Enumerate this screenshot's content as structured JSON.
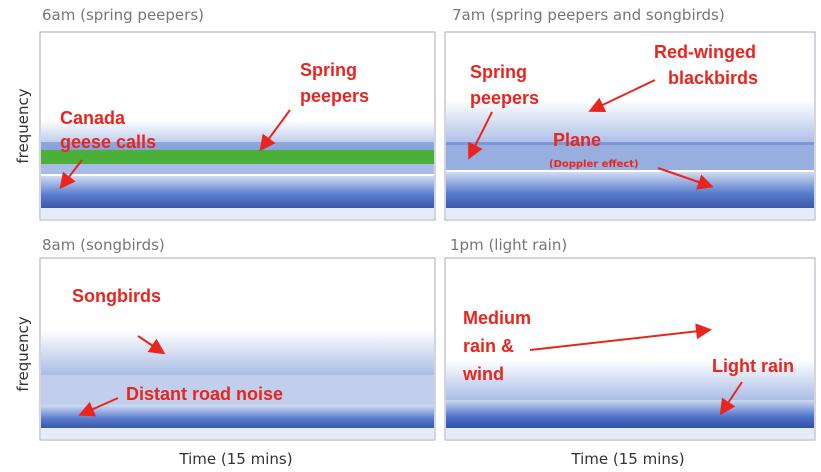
{
  "panels": [
    {
      "title": "6am (spring peepers)",
      "y_label": "frequency",
      "annotations": [
        [
          "Spring",
          "peepers"
        ],
        [
          "Canada",
          "geese calls"
        ]
      ]
    },
    {
      "title": "7am (spring peepers and songbirds)",
      "annotations": [
        [
          "Spring",
          "peepers"
        ],
        [
          "Red-winged",
          "blackbirds"
        ],
        [
          "Plane",
          "(Doppler effect)"
        ]
      ]
    },
    {
      "title": "8am (songbirds)",
      "y_label": "frequency",
      "x_label": "Time (15 mins)",
      "annotations": [
        [
          "Songbirds"
        ],
        [
          "Distant road noise"
        ]
      ]
    },
    {
      "title": "1pm (light rain)",
      "x_label": "Time (15 mins)",
      "annotations": [
        [
          "Medium",
          "rain &",
          "wind"
        ],
        [
          "Light rain"
        ]
      ]
    }
  ]
}
